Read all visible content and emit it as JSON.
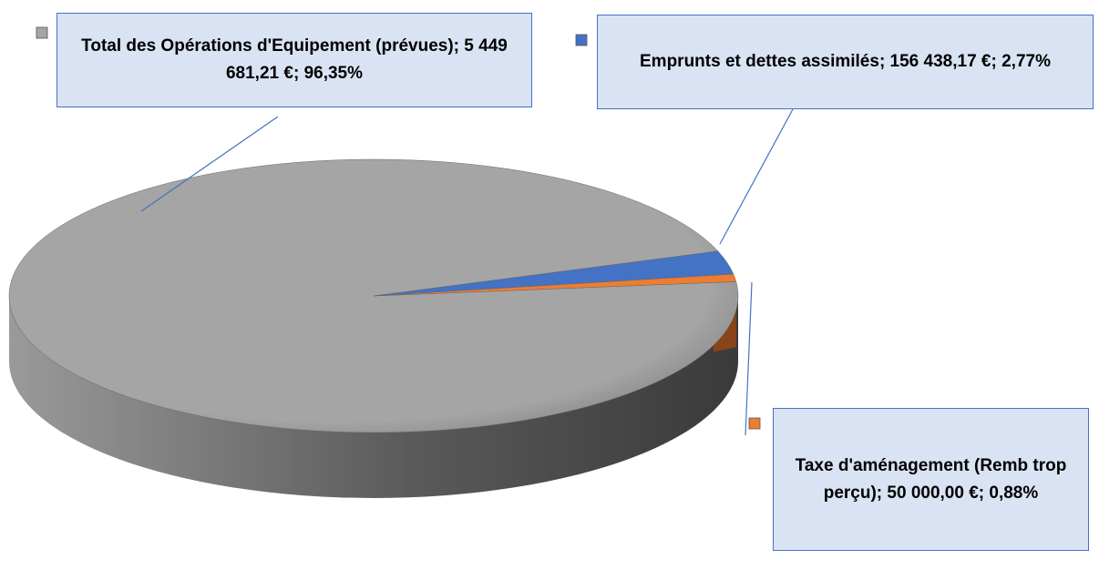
{
  "chart_data": {
    "type": "pie",
    "categories": [
      "Total des Opérations d'Equipement (prévues)",
      "Emprunts et dettes assimilés",
      "Taxe d'aménagement (Remb trop perçu)"
    ],
    "values": [
      5449681.21,
      156438.17,
      50000
    ],
    "value_labels": [
      "5 449 681,21 €",
      "156 438,17 €",
      "50 000,00 €"
    ],
    "percents": [
      96.35,
      2.77,
      0.88
    ],
    "percent_labels": [
      "96,35%",
      "2,77%",
      "0,88%"
    ],
    "label_separator": "; ",
    "colors": [
      "#a5a5a5",
      "#4472c4",
      "#ed7d31"
    ]
  }
}
